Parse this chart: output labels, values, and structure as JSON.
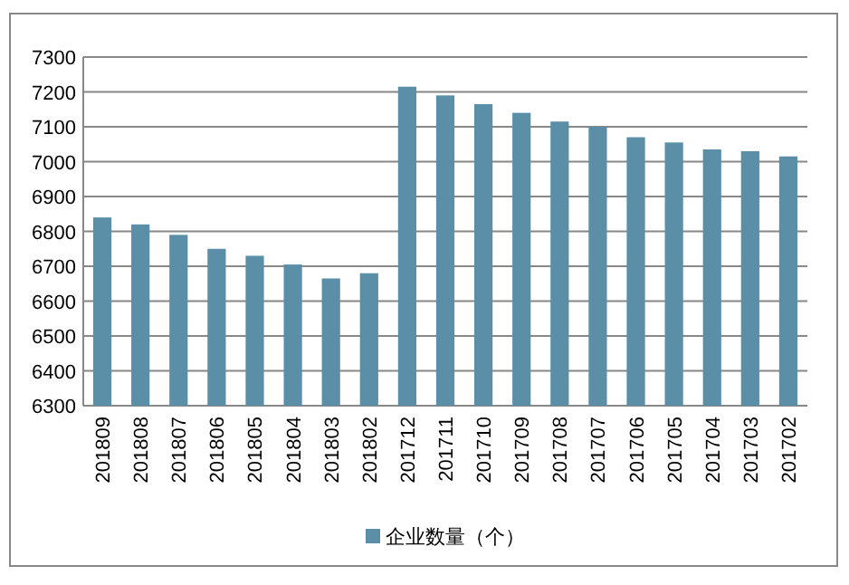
{
  "chart_data": {
    "type": "bar",
    "categories": [
      "201809",
      "201808",
      "201807",
      "201806",
      "201805",
      "201804",
      "201803",
      "201802",
      "201712",
      "201711",
      "201710",
      "201709",
      "201708",
      "201707",
      "201706",
      "201705",
      "201704",
      "201703",
      "201702"
    ],
    "series": [
      {
        "name": "企业数量（个）",
        "color": "#5b8fa8",
        "values": [
          6840,
          6820,
          6790,
          6750,
          6730,
          6705,
          6665,
          6680,
          7215,
          7190,
          7165,
          7140,
          7115,
          7100,
          7070,
          7055,
          7035,
          7030,
          7015
        ]
      }
    ],
    "ylim": [
      6300,
      7300
    ],
    "yticks": [
      6300,
      6400,
      6500,
      6600,
      6700,
      6800,
      6900,
      7000,
      7100,
      7200,
      7300
    ],
    "grid": "y",
    "legend": "bottom"
  }
}
